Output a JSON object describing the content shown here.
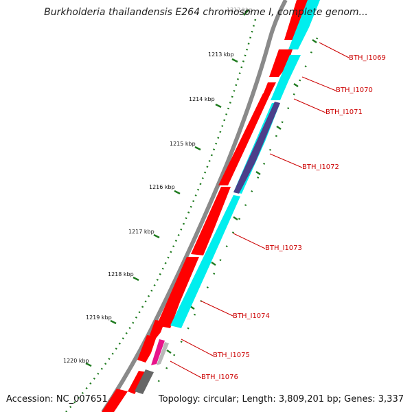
{
  "header": {
    "title": "Burkholderia thailandensis E264 chromosome I, complete genom..."
  },
  "footer": {
    "accession": "Accession: NC_007651",
    "topology": "Topology: circular; Length: 3,809,201 bp; Genes: 3,337"
  },
  "ruler": {
    "ticks": [
      {
        "label": "1212 kbp",
        "faded": true
      },
      {
        "label": "1213 kbp"
      },
      {
        "label": "1214 kbp"
      },
      {
        "label": "1215 kbp"
      },
      {
        "label": "1216 kbp"
      },
      {
        "label": "1217 kbp"
      },
      {
        "label": "1218 kbp"
      },
      {
        "label": "1219 kbp"
      },
      {
        "label": "1220 kbp"
      }
    ]
  },
  "gene_labels": [
    {
      "label": "BTH_I1069"
    },
    {
      "label": "BTH_I1070"
    },
    {
      "label": "BTH_I1071"
    },
    {
      "label": "BTH_I1072"
    },
    {
      "label": "BTH_I1073"
    },
    {
      "label": "BTH_I1074"
    },
    {
      "label": "BTH_I1075"
    },
    {
      "label": "BTH_I1076"
    }
  ],
  "colors": {
    "backbone": "#888888",
    "cds": "#ff0000",
    "gene": "#00eeee",
    "purple": "#4b3f8a",
    "magenta": "#e8138a",
    "silver": "#b8b8b8",
    "dark": "#666666",
    "ruler": "#1e7a1e",
    "label": "#cc0000"
  }
}
